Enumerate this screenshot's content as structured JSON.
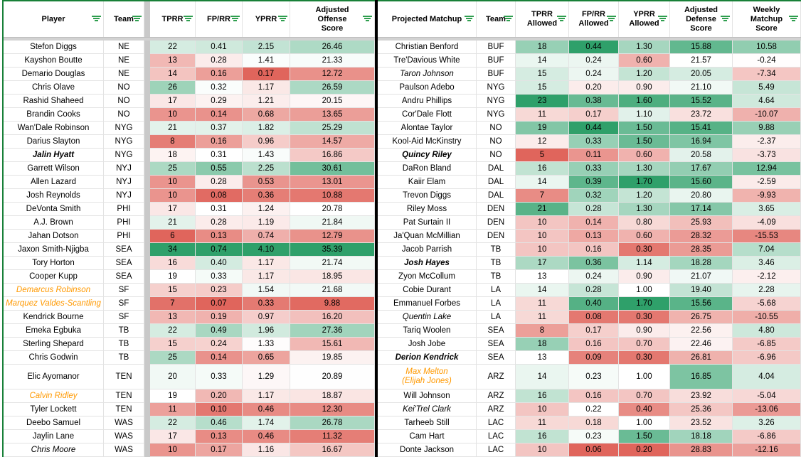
{
  "app": {
    "accent_green": "#188038",
    "filter_icon_green": "#2f9e4f",
    "divider_black": "#000000",
    "band_gray": "#d2d2d2",
    "gap_gray": "#c9c9c9",
    "scale_green_max": "#2fa06a",
    "scale_red_max": "#e0655c",
    "orange_player_text": "#ff9900"
  },
  "left": {
    "columns": [
      {
        "key": "player",
        "label": "Player",
        "type": "name"
      },
      {
        "key": "team",
        "label": "Team",
        "type": "text"
      },
      {
        "key": "gap"
      },
      {
        "key": "tprr",
        "label": "TPRR",
        "scale": {
          "min": 6,
          "mid": 19,
          "max": 34
        }
      },
      {
        "key": "fprr",
        "label": "FP/RR",
        "scale": {
          "min": 0.07,
          "mid": 0.31,
          "max": 0.74
        }
      },
      {
        "key": "yprr",
        "label": "YPRR",
        "scale": {
          "min": 0.17,
          "mid": 1.35,
          "max": 4.1
        }
      },
      {
        "key": "score",
        "label": "Adjusted Offense Score",
        "scale": {
          "min": 9.5,
          "mid": 20.8,
          "max": 35.39
        }
      }
    ],
    "rows": [
      {
        "player": "Stefon Diggs",
        "team": "NE",
        "tprr": "22",
        "fprr": "0.41",
        "yprr": "2.15",
        "score": "26.46"
      },
      {
        "player": "Kayshon Boutte",
        "team": "NE",
        "tprr": "13",
        "fprr": "0.28",
        "yprr": "1.41",
        "score": "21.33"
      },
      {
        "player": "Demario Douglas",
        "team": "NE",
        "tprr": "14",
        "fprr": "0.16",
        "yprr": "0.17",
        "score": "12.72"
      },
      {
        "player": "Chris Olave",
        "team": "NO",
        "tprr": "26",
        "fprr": "0.32",
        "yprr": "1.17",
        "score": "26.59"
      },
      {
        "player": "Rashid Shaheed",
        "team": "NO",
        "tprr": "17",
        "fprr": "0.29",
        "yprr": "1.21",
        "score": "20.15"
      },
      {
        "player": "Brandin Cooks",
        "team": "NO",
        "tprr": "10",
        "fprr": "0.14",
        "yprr": "0.68",
        "score": "13.65"
      },
      {
        "player": "Wan'Dale Robinson",
        "team": "NYG",
        "tprr": "21",
        "fprr": "0.37",
        "yprr": "1.82",
        "score": "25.29"
      },
      {
        "player": "Darius Slayton",
        "team": "NYG",
        "tprr": "8",
        "fprr": "0.16",
        "yprr": "0.96",
        "score": "14.57"
      },
      {
        "player": "Jalin Hyatt",
        "style": "bi",
        "team": "NYG",
        "tprr": "18",
        "fprr": "0.31",
        "yprr": "1.43",
        "score": "16.86"
      },
      {
        "player": "Garrett Wilson",
        "team": "NYJ",
        "tprr": "25",
        "fprr": "0.55",
        "yprr": "2.25",
        "score": "30.61"
      },
      {
        "player": "Allen Lazard",
        "team": "NYJ",
        "tprr": "10",
        "fprr": "0.28",
        "yprr": "0.53",
        "score": "13.01"
      },
      {
        "player": "Josh Reynolds",
        "team": "NYJ",
        "tprr": "10",
        "fprr": "0.08",
        "yprr": "0.36",
        "score": "10.88"
      },
      {
        "player": "DeVonta Smith",
        "team": "PHI",
        "tprr": "17",
        "fprr": "0.31",
        "yprr": "1.24",
        "score": "20.78"
      },
      {
        "player": "A.J. Brown",
        "team": "PHI",
        "tprr": "21",
        "fprr": "0.28",
        "yprr": "1.19",
        "score": "21.84"
      },
      {
        "player": "Jahan Dotson",
        "team": "PHI",
        "tprr": "6",
        "fprr": "0.13",
        "yprr": "0.74",
        "score": "12.79"
      },
      {
        "player": "Jaxon Smith-Njigba",
        "team": "SEA",
        "tprr": "34",
        "fprr": "0.74",
        "yprr": "4.10",
        "score": "35.39"
      },
      {
        "player": "Tory Horton",
        "team": "SEA",
        "tprr": "16",
        "fprr": "0.40",
        "yprr": "1.17",
        "score": "21.74"
      },
      {
        "player": "Cooper Kupp",
        "team": "SEA",
        "tprr": "19",
        "fprr": "0.33",
        "yprr": "1.17",
        "score": "18.95"
      },
      {
        "player": "Demarcus Robinson",
        "style": "oi",
        "team": "SF",
        "tprr": "15",
        "fprr": "0.23",
        "yprr": "1.54",
        "score": "21.68"
      },
      {
        "player": "Marquez Valdes-Scantling",
        "style": "oi",
        "team": "SF",
        "tprr": "7",
        "fprr": "0.07",
        "yprr": "0.33",
        "score": "9.88"
      },
      {
        "player": "Kendrick Bourne",
        "team": "SF",
        "tprr": "13",
        "fprr": "0.19",
        "yprr": "0.97",
        "score": "16.20"
      },
      {
        "player": "Emeka Egbuka",
        "team": "TB",
        "tprr": "22",
        "fprr": "0.49",
        "yprr": "1.96",
        "score": "27.36"
      },
      {
        "player": "Sterling Shepard",
        "team": "TB",
        "tprr": "15",
        "fprr": "0.24",
        "yprr": "1.33",
        "score": "15.61"
      },
      {
        "player": "Chris Godwin",
        "team": "TB",
        "tprr": "25",
        "fprr": "0.14",
        "yprr": "0.65",
        "score": "19.85"
      },
      {
        "player": "Elic Ayomanor",
        "team": "TEN",
        "tall": true,
        "tprr": "20",
        "fprr": "0.33",
        "yprr": "1.29",
        "score": "20.89"
      },
      {
        "player": "Calvin Ridley",
        "style": "oi",
        "team": "TEN",
        "tprr": "19",
        "fprr": "0.20",
        "yprr": "1.17",
        "score": "18.87"
      },
      {
        "player": "Tyler Lockett",
        "team": "TEN",
        "tprr": "11",
        "fprr": "0.10",
        "yprr": "0.46",
        "score": "12.30"
      },
      {
        "player": "Deebo Samuel",
        "team": "WAS",
        "tprr": "22",
        "fprr": "0.46",
        "yprr": "1.74",
        "score": "26.78"
      },
      {
        "player": "Jaylin Lane",
        "team": "WAS",
        "tprr": "17",
        "fprr": "0.13",
        "yprr": "0.46",
        "score": "11.32"
      },
      {
        "player": "Chris Moore",
        "style": "i",
        "team": "WAS",
        "tprr": "10",
        "fprr": "0.17",
        "yprr": "1.16",
        "score": "16.67"
      }
    ]
  },
  "right": {
    "columns": [
      {
        "key": "matchup",
        "label": "Projected Matchup",
        "type": "name"
      },
      {
        "key": "team",
        "label": "Team",
        "type": "text"
      },
      {
        "key": "tprr",
        "label": "TPRR Allowed",
        "scale": {
          "min": 5,
          "mid": 13,
          "max": 23
        }
      },
      {
        "key": "fprr",
        "label": "FP/RR Allowed",
        "scale": {
          "min": 0.06,
          "mid": 0.22,
          "max": 0.44
        }
      },
      {
        "key": "yprr",
        "label": "YPRR Allowed",
        "scale": {
          "min": 0.2,
          "mid": 1.0,
          "max": 1.7
        }
      },
      {
        "key": "def",
        "label": "Adjusted Defense Score",
        "scale": {
          "min": 14,
          "mid": 21.6,
          "max": 32,
          "invert": true
        }
      },
      {
        "key": "weekly",
        "label": "Weekly Matchup Score",
        "scale": {
          "min": -20,
          "mid": 0,
          "max": 20
        }
      }
    ],
    "rows": [
      {
        "matchup": "Christian Benford",
        "team": "BUF",
        "tprr": "18",
        "fprr": "0.44",
        "yprr": "1.30",
        "def": "15.88",
        "weekly": "10.58"
      },
      {
        "matchup": "Tre'Davious White",
        "team": "BUF",
        "tprr": "14",
        "fprr": "0.24",
        "yprr": "0.60",
        "def": "21.57",
        "weekly": "-0.24"
      },
      {
        "matchup": "Taron Johnson",
        "style": "i",
        "team": "BUF",
        "tprr": "15",
        "fprr": "0.24",
        "yprr": "1.20",
        "def": "20.05",
        "weekly": "-7.34"
      },
      {
        "matchup": "Paulson Adebo",
        "team": "NYG",
        "tprr": "15",
        "fprr": "0.20",
        "yprr": "0.90",
        "def": "21.10",
        "weekly": "5.49"
      },
      {
        "matchup": "Andru Phillips",
        "team": "NYG",
        "tprr": "23",
        "fprr": "0.38",
        "yprr": "1.60",
        "def": "15.52",
        "weekly": "4.64"
      },
      {
        "matchup": "Cor'Dale Flott",
        "team": "NYG",
        "tprr": "11",
        "fprr": "0.17",
        "yprr": "1.10",
        "def": "23.72",
        "weekly": "-10.07"
      },
      {
        "matchup": "Alontae Taylor",
        "team": "NO",
        "tprr": "19",
        "fprr": "0.44",
        "yprr": "1.50",
        "def": "15.41",
        "weekly": "9.88"
      },
      {
        "matchup": "Kool-Aid McKinstry",
        "team": "NO",
        "tprr": "12",
        "fprr": "0.33",
        "yprr": "1.50",
        "def": "16.94",
        "weekly": "-2.37"
      },
      {
        "matchup": "Quincy Riley",
        "style": "bi",
        "team": "NO",
        "tprr": "5",
        "fprr": "0.11",
        "yprr": "0.60",
        "def": "20.58",
        "weekly": "-3.73"
      },
      {
        "matchup": "DaRon Bland",
        "team": "DAL",
        "tprr": "16",
        "fprr": "0.33",
        "yprr": "1.30",
        "def": "17.67",
        "weekly": "12.94"
      },
      {
        "matchup": "Kaiir Elam",
        "team": "DAL",
        "tprr": "14",
        "fprr": "0.39",
        "yprr": "1.70",
        "def": "15.60",
        "weekly": "-2.59"
      },
      {
        "matchup": "Trevon Diggs",
        "team": "DAL",
        "tprr": "7",
        "fprr": "0.32",
        "yprr": "1.20",
        "def": "20.80",
        "weekly": "-9.93"
      },
      {
        "matchup": "Riley Moss",
        "team": "DEN",
        "tprr": "21",
        "fprr": "0.28",
        "yprr": "1.30",
        "def": "17.14",
        "weekly": "3.65"
      },
      {
        "matchup": "Pat Surtain II",
        "team": "DEN",
        "tprr": "10",
        "fprr": "0.14",
        "yprr": "0.80",
        "def": "25.93",
        "weekly": "-4.09"
      },
      {
        "matchup": "Ja'Quan McMillian",
        "team": "DEN",
        "tprr": "10",
        "fprr": "0.13",
        "yprr": "0.60",
        "def": "28.32",
        "weekly": "-15.53"
      },
      {
        "matchup": "Jacob Parrish",
        "team": "TB",
        "tprr": "10",
        "fprr": "0.16",
        "yprr": "0.30",
        "def": "28.35",
        "weekly": "7.04"
      },
      {
        "matchup": "Josh Hayes",
        "style": "bi",
        "team": "TB",
        "tprr": "17",
        "fprr": "0.36",
        "yprr": "1.14",
        "def": "18.28",
        "weekly": "3.46"
      },
      {
        "matchup": "Zyon McCollum",
        "team": "TB",
        "tprr": "13",
        "fprr": "0.24",
        "yprr": "0.90",
        "def": "21.07",
        "weekly": "-2.12"
      },
      {
        "matchup": "Cobie Durant",
        "team": "LA",
        "tprr": "14",
        "fprr": "0.28",
        "yprr": "1.00",
        "def": "19.40",
        "weekly": "2.28"
      },
      {
        "matchup": "Emmanuel Forbes",
        "team": "LA",
        "tprr": "11",
        "fprr": "0.40",
        "yprr": "1.70",
        "def": "15.56",
        "weekly": "-5.68"
      },
      {
        "matchup": "Quentin Lake",
        "style": "i",
        "team": "LA",
        "tprr": "11",
        "fprr": "0.08",
        "yprr": "0.30",
        "def": "26.75",
        "weekly": "-10.55"
      },
      {
        "matchup": "Tariq Woolen",
        "team": "SEA",
        "tprr": "8",
        "fprr": "0.17",
        "yprr": "0.90",
        "def": "22.56",
        "weekly": "4.80"
      },
      {
        "matchup": "Josh Jobe",
        "team": "SEA",
        "tprr": "18",
        "fprr": "0.16",
        "yprr": "0.70",
        "def": "22.46",
        "weekly": "-6.85"
      },
      {
        "matchup": "Derion Kendrick",
        "style": "bi",
        "team": "SEA",
        "tprr": "13",
        "fprr": "0.09",
        "yprr": "0.30",
        "def": "26.81",
        "weekly": "-6.96"
      },
      {
        "matchup": "Max Melton\n(Elijah Jones)",
        "style": "oi",
        "team": "ARZ",
        "tall": true,
        "tprr": "14",
        "fprr": "0.23",
        "yprr": "1.00",
        "def": "16.85",
        "weekly": "4.04"
      },
      {
        "matchup": "Will Johnson",
        "team": "ARZ",
        "tprr": "16",
        "fprr": "0.16",
        "yprr": "0.70",
        "def": "23.92",
        "weekly": "-5.04"
      },
      {
        "matchup": "Kei'Trel Clark",
        "style": "i",
        "team": "ARZ",
        "tprr": "10",
        "fprr": "0.22",
        "yprr": "0.40",
        "def": "25.36",
        "weekly": "-13.06"
      },
      {
        "matchup": "Tarheeb Still",
        "team": "LAC",
        "tprr": "11",
        "fprr": "0.18",
        "yprr": "1.00",
        "def": "23.52",
        "weekly": "3.26"
      },
      {
        "matchup": "Cam Hart",
        "team": "LAC",
        "tprr": "16",
        "fprr": "0.23",
        "yprr": "1.50",
        "def": "18.18",
        "weekly": "-6.86"
      },
      {
        "matchup": "Donte Jackson",
        "team": "LAC",
        "tprr": "10",
        "fprr": "0.06",
        "yprr": "0.20",
        "def": "28.83",
        "weekly": "-12.16"
      }
    ]
  }
}
